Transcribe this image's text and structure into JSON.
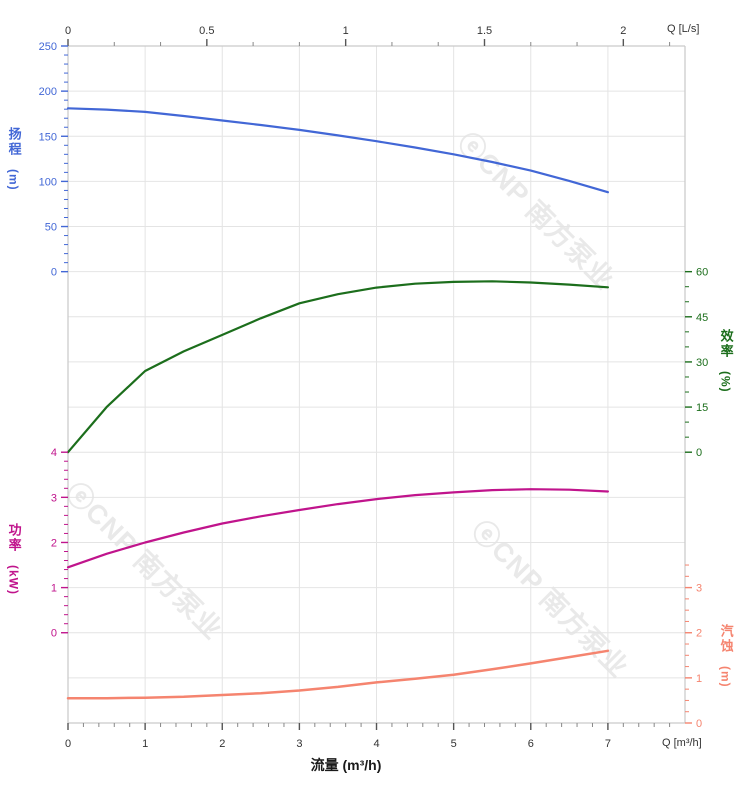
{
  "axes": {
    "top": {
      "label": "Q [L/s]",
      "ticks": [
        0,
        0.5,
        1,
        1.5,
        2
      ]
    },
    "bottom": {
      "label": "Q [m³/h]",
      "title": "流量 (m³/h)",
      "ticks": [
        0,
        1,
        2,
        3,
        4,
        5,
        6,
        7
      ]
    },
    "head": {
      "title": "扬程",
      "unit": "(m)",
      "color": "#4267d6",
      "ticks": [
        250,
        200,
        150,
        100,
        50,
        0
      ]
    },
    "eff": {
      "title": "效率",
      "unit": "(%)",
      "color": "#1c6e1c",
      "ticks": [
        60,
        45,
        30,
        15,
        0
      ]
    },
    "power": {
      "title": "功率",
      "unit": "(kW)",
      "color": "#c0148c",
      "ticks": [
        4,
        3,
        2,
        1,
        0
      ]
    },
    "npsh": {
      "title": "汽蚀",
      "unit": "(m)",
      "color": "#f5846f",
      "ticks": [
        3,
        2,
        1,
        0
      ]
    }
  },
  "watermark": {
    "text": "ⓔCNP 南方泵业",
    "color": "#e9e9e9"
  },
  "chart_data": {
    "type": "line",
    "title": "",
    "xlabel": "流量 (m³/h)",
    "x_secondary_label": "Q [L/s]",
    "x_unit": "m³/h",
    "x_range_m3h": [
      0,
      8
    ],
    "x_range_ls": [
      0,
      2
    ],
    "grid": true,
    "x": [
      0,
      0.5,
      1,
      1.5,
      2,
      2.5,
      3,
      3.5,
      4,
      4.5,
      5,
      5.5,
      6,
      6.5,
      7
    ],
    "series": [
      {
        "name": "扬程",
        "unit": "m",
        "axis": "head",
        "axis_range": [
          0,
          250
        ],
        "color": "#4267d6",
        "values": [
          181,
          179.5,
          177,
          172.5,
          167.5,
          162.5,
          157,
          151,
          144.5,
          137.5,
          130,
          121.5,
          112,
          100.5,
          88
        ]
      },
      {
        "name": "效率",
        "unit": "%",
        "axis": "eff",
        "axis_range": [
          0,
          60
        ],
        "color": "#1c6e1c",
        "values": [
          0,
          15,
          27,
          33.5,
          39,
          44.5,
          49.5,
          52.5,
          54.7,
          56,
          56.6,
          56.8,
          56.4,
          55.7,
          54.8
        ]
      },
      {
        "name": "功率",
        "unit": "kW",
        "axis": "power",
        "axis_range": [
          0,
          4
        ],
        "color": "#c0148c",
        "values": [
          1.45,
          1.75,
          2.0,
          2.22,
          2.42,
          2.58,
          2.72,
          2.85,
          2.96,
          3.05,
          3.11,
          3.16,
          3.18,
          3.17,
          3.13
        ]
      },
      {
        "name": "汽蚀",
        "unit": "m",
        "axis": "npsh",
        "axis_range": [
          0,
          3
        ],
        "color": "#f5846f",
        "values": [
          0.55,
          0.55,
          0.56,
          0.58,
          0.62,
          0.66,
          0.72,
          0.8,
          0.9,
          0.98,
          1.07,
          1.19,
          1.32,
          1.46,
          1.6
        ]
      }
    ]
  }
}
